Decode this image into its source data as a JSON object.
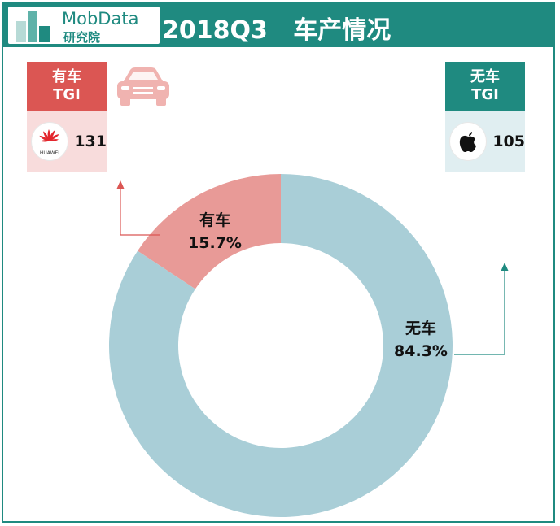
{
  "header": {
    "brand": "MobData",
    "brand_sub": "研究院",
    "title": "2018Q3   车产情况"
  },
  "left_panel": {
    "badge_line1": "有车",
    "badge_line2": "TGI",
    "icon": "car-icon",
    "brand_icon": "huawei-logo",
    "brand_text": "HUAWEI",
    "value": "131",
    "color": "#db5653"
  },
  "right_panel": {
    "badge_line1": "无车",
    "badge_line2": "TGI",
    "brand_icon": "apple-logo",
    "value": "105",
    "color": "#1f8a80"
  },
  "chart_data": {
    "type": "pie",
    "donut": true,
    "categories": [
      "有车",
      "无车"
    ],
    "values": [
      15.7,
      84.3
    ],
    "labels": [
      "15.7%",
      "84.3%"
    ],
    "colors": [
      "#e89a97",
      "#a9ced7"
    ]
  }
}
